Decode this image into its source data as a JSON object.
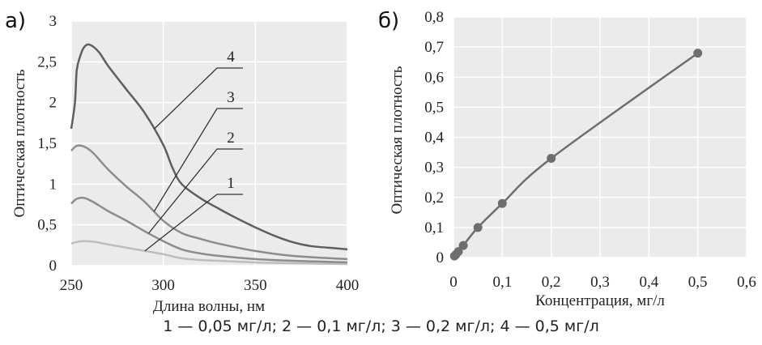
{
  "caption": "1 — 0,05 мг/л; 2 — 0,1 мг/л; 3 — 0,2 мг/л; 4 — 0,5 мг/л",
  "chart_data": [
    {
      "panel": "a)",
      "type": "line",
      "title": "",
      "xlabel": "Длина волны, нм",
      "ylabel": "Оптическая плотность",
      "xlim": [
        250,
        400
      ],
      "ylim": [
        0,
        3
      ],
      "xticks": [
        "250",
        "300",
        "350",
        "400"
      ],
      "yticks": [
        "0",
        "0,5",
        "1",
        "1,5",
        "2",
        "2,5",
        "3"
      ],
      "grid": true,
      "background": "#ebebeb",
      "series": [
        {
          "name": "1",
          "color": "#bdbdbd",
          "x": [
            250,
            253,
            257,
            263,
            270,
            280,
            290,
            300,
            310,
            320,
            330,
            350,
            370,
            400
          ],
          "y": [
            0.27,
            0.29,
            0.3,
            0.29,
            0.26,
            0.22,
            0.18,
            0.14,
            0.09,
            0.07,
            0.06,
            0.04,
            0.03,
            0.02
          ]
        },
        {
          "name": "2",
          "color": "#8c8c8c",
          "x": [
            250,
            253,
            257,
            262,
            270,
            280,
            290,
            300,
            310,
            320,
            330,
            350,
            370,
            400
          ],
          "y": [
            0.76,
            0.82,
            0.83,
            0.78,
            0.67,
            0.55,
            0.42,
            0.3,
            0.2,
            0.15,
            0.12,
            0.08,
            0.06,
            0.04
          ]
        },
        {
          "name": "3",
          "color": "#8c8c8c",
          "x": [
            250,
            253,
            257,
            262,
            270,
            280,
            290,
            300,
            310,
            320,
            330,
            350,
            370,
            400
          ],
          "y": [
            1.41,
            1.47,
            1.46,
            1.38,
            1.18,
            0.97,
            0.78,
            0.55,
            0.4,
            0.33,
            0.27,
            0.18,
            0.12,
            0.08
          ]
        },
        {
          "name": "4",
          "color": "#5f5f5f",
          "x": [
            250,
            252,
            253,
            255,
            257,
            260,
            265,
            270,
            280,
            290,
            300,
            305,
            310,
            320,
            330,
            340,
            350,
            360,
            370,
            380,
            390,
            400
          ],
          "y": [
            1.68,
            2.0,
            2.4,
            2.58,
            2.68,
            2.71,
            2.62,
            2.45,
            2.16,
            1.87,
            1.48,
            1.2,
            1.0,
            0.83,
            0.7,
            0.58,
            0.47,
            0.37,
            0.29,
            0.24,
            0.22,
            0.2
          ]
        }
      ],
      "curve_labels": [
        "1",
        "2",
        "3",
        "4"
      ]
    },
    {
      "panel": "б)",
      "type": "scatter",
      "title": "",
      "xlabel": "Концентрация, мг/л",
      "ylabel": "Оптическая плотность",
      "xlim": [
        0,
        0.6
      ],
      "ylim": [
        0,
        0.8
      ],
      "xticks": [
        "0",
        "0,1",
        "0,2",
        "0,3",
        "0,4",
        "0,5",
        "0,6"
      ],
      "yticks": [
        "0",
        "0,1",
        "0,2",
        "0,3",
        "0,4",
        "0,5",
        "0,6",
        "0,7",
        "0,8"
      ],
      "grid": true,
      "background": "#ebebeb",
      "series": [
        {
          "color": "#6e6e6e",
          "x": [
            0.002,
            0.005,
            0.01,
            0.02,
            0.05,
            0.1,
            0.2,
            0.5
          ],
          "y": [
            0.005,
            0.01,
            0.02,
            0.04,
            0.1,
            0.18,
            0.33,
            0.68
          ]
        }
      ]
    }
  ]
}
